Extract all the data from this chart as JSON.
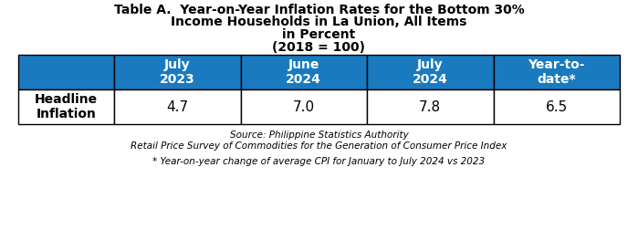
{
  "title_lines": [
    "Table A.  Year-on-Year Inflation Rates for the Bottom 30%",
    "Income Households in La Union, All Items",
    "in Percent",
    "(2018 = 100)"
  ],
  "header_bg": "#1a7abf",
  "header_text_color": "#ffffff",
  "header_cols": [
    "July\n2023",
    "June\n2024",
    "July\n2024",
    "Year-to-\ndate*"
  ],
  "row_label": "Headline\nInflation",
  "row_values": [
    "4.7",
    "7.0",
    "7.8",
    "6.5"
  ],
  "row_bg": "#ffffff",
  "row_text_color": "#000000",
  "border_color": "#000000",
  "source_lines": [
    "Source: Philippine Statistics Authority",
    "Retail Price Survey of Commodities for the Generation of Consumer Price Index"
  ],
  "footnote": "* Year-on-year change of average CPI for January to July 2024 vs 2023",
  "title_fontsize": 10,
  "header_fontsize": 10,
  "data_fontsize": 11,
  "source_fontsize": 7.5
}
